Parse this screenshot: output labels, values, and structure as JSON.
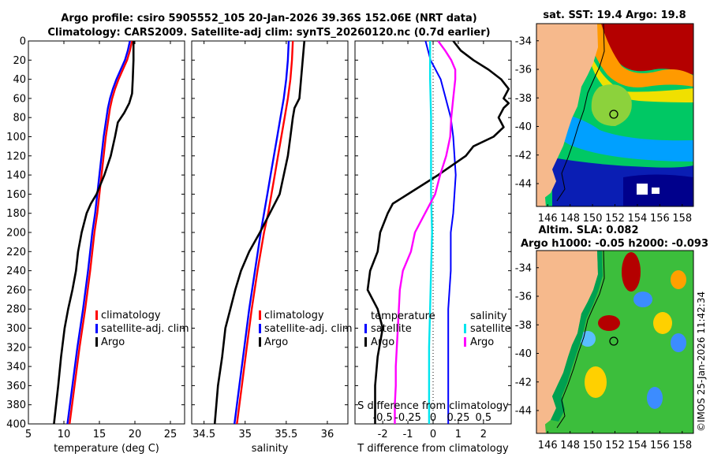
{
  "title": {
    "line1": "Argo profile: csiro 5905552_105 20-Jan-2026 39.36S 152.06E (NRT data)",
    "line2": "Climatology: CARS2009. Satellite-adj clim: synTS_20260120.nc (0.7d earlier)"
  },
  "colors": {
    "climatology": "#ff0000",
    "satellite": "#0000ff",
    "argo": "#000000",
    "sal_sat": "#00e5ee",
    "sal_argo": "#ff00ff"
  },
  "chart_data": [
    {
      "type": "line",
      "id": "temperature",
      "xlabel": "temperature (deg C)",
      "ylabel": "depth",
      "xlim": [
        5,
        27
      ],
      "ylim": [
        0,
        400
      ],
      "xticks": [
        "5",
        "10",
        "15",
        "20",
        "25"
      ],
      "yticks": [
        "0",
        "20",
        "40",
        "60",
        "80",
        "100",
        "120",
        "140",
        "160",
        "180",
        "200",
        "220",
        "240",
        "260",
        "280",
        "300",
        "320",
        "340",
        "360",
        "380",
        "400"
      ],
      "legend": [
        "climatology",
        "satellite-adj. clim",
        "Argo"
      ],
      "series": [
        {
          "name": "climatology",
          "depth": [
            0,
            10,
            20,
            30,
            40,
            50,
            60,
            70,
            80,
            100,
            120,
            140,
            160,
            180,
            200,
            240,
            280,
            320,
            360,
            400
          ],
          "values": [
            19.6,
            19.3,
            18.9,
            18.3,
            17.7,
            17.2,
            16.8,
            16.5,
            16.3,
            15.9,
            15.6,
            15.3,
            15.0,
            14.7,
            14.3,
            13.7,
            13.0,
            12.2,
            11.5,
            10.8
          ]
        },
        {
          "name": "satellite",
          "depth": [
            0,
            10,
            20,
            30,
            40,
            50,
            60,
            70,
            80,
            100,
            120,
            140,
            160,
            180,
            200,
            240,
            280,
            320,
            360,
            400
          ],
          "values": [
            19.3,
            19.0,
            18.6,
            18.0,
            17.4,
            16.9,
            16.5,
            16.2,
            16.0,
            15.6,
            15.3,
            15.0,
            14.7,
            14.4,
            14.0,
            13.4,
            12.7,
            11.9,
            11.2,
            10.5
          ]
        },
        {
          "name": "Argo",
          "depth": [
            0,
            20,
            40,
            55,
            65,
            75,
            85,
            100,
            120,
            140,
            160,
            170,
            180,
            200,
            220,
            240,
            260,
            280,
            300,
            330,
            360,
            400
          ],
          "values": [
            19.8,
            19.8,
            19.7,
            19.6,
            19.2,
            18.5,
            17.6,
            17.2,
            16.6,
            15.7,
            14.6,
            13.8,
            13.2,
            12.5,
            12.0,
            11.7,
            11.2,
            10.6,
            10.1,
            9.6,
            9.2,
            8.6
          ]
        }
      ]
    },
    {
      "type": "line",
      "id": "salinity",
      "xlabel": "salinity",
      "ylabel": "depth",
      "xlim": [
        34.35,
        36.25
      ],
      "ylim": [
        0,
        400
      ],
      "xticks": [
        "34.5",
        "35",
        "35.5",
        "36"
      ],
      "legend": [
        "climatology",
        "satellite-adj. clim",
        "Argo"
      ],
      "series": [
        {
          "name": "climatology",
          "depth": [
            0,
            20,
            40,
            60,
            80,
            100,
            120,
            140,
            160,
            180,
            200,
            240,
            280,
            320,
            360,
            400
          ],
          "values": [
            35.58,
            35.57,
            35.55,
            35.52,
            35.48,
            35.44,
            35.4,
            35.36,
            35.32,
            35.28,
            35.23,
            35.15,
            35.08,
            35.02,
            34.96,
            34.9
          ]
        },
        {
          "name": "satellite",
          "depth": [
            0,
            20,
            40,
            60,
            80,
            100,
            120,
            140,
            160,
            180,
            200,
            240,
            280,
            320,
            360,
            400
          ],
          "values": [
            35.53,
            35.52,
            35.5,
            35.47,
            35.43,
            35.39,
            35.35,
            35.31,
            35.27,
            35.23,
            35.19,
            35.12,
            35.05,
            34.99,
            34.93,
            34.87
          ]
        },
        {
          "name": "Argo",
          "depth": [
            0,
            40,
            60,
            70,
            80,
            100,
            120,
            140,
            160,
            180,
            200,
            220,
            240,
            260,
            280,
            300,
            330,
            360,
            400
          ],
          "values": [
            35.72,
            35.68,
            35.66,
            35.6,
            35.58,
            35.55,
            35.52,
            35.47,
            35.42,
            35.3,
            35.18,
            35.05,
            34.95,
            34.88,
            34.82,
            34.76,
            34.72,
            34.67,
            34.63
          ]
        }
      ]
    },
    {
      "type": "line",
      "id": "difference",
      "xlabel": "T difference from climatology",
      "x2label": "S difference from climatology",
      "xlim": [
        -3.1,
        3.1
      ],
      "ylim": [
        0,
        400
      ],
      "xticks": [
        "-2",
        "-1",
        "0",
        "1",
        "2"
      ],
      "x2ticks": [
        "-0.5",
        "-0.25",
        "0",
        "0.25",
        "0.5"
      ],
      "legend_left_title": "temperature",
      "legend_left": [
        "satellite",
        "Argo"
      ],
      "legend_right_title": "salinity",
      "legend_right": [
        "satellite",
        "Argo"
      ],
      "series": [
        {
          "name": "T satellite",
          "depth": [
            0,
            20,
            40,
            60,
            80,
            100,
            140,
            180,
            200,
            240,
            280,
            320,
            360,
            400
          ],
          "values": [
            -0.3,
            -0.1,
            0.3,
            0.5,
            0.7,
            0.8,
            0.9,
            0.8,
            0.7,
            0.7,
            0.6,
            0.6,
            0.6,
            0.6
          ]
        },
        {
          "name": "T Argo",
          "depth": [
            0,
            10,
            20,
            30,
            40,
            50,
            60,
            65,
            70,
            80,
            90,
            100,
            110,
            120,
            140,
            160,
            170,
            180,
            200,
            220,
            240,
            260,
            280,
            300,
            330,
            360,
            400
          ],
          "values": [
            0.8,
            1.1,
            1.6,
            2.2,
            2.7,
            3.0,
            2.8,
            3.0,
            2.8,
            2.6,
            2.8,
            2.4,
            1.6,
            1.3,
            0.2,
            -1.0,
            -1.6,
            -1.8,
            -2.1,
            -2.2,
            -2.5,
            -2.6,
            -2.2,
            -2.0,
            -2.2,
            -2.3,
            -2.3
          ]
        },
        {
          "name": "S satellite",
          "depth": [
            0,
            40,
            80,
            120,
            160,
            200,
            240,
            280,
            320,
            360,
            400
          ],
          "values": [
            -0.03,
            -0.03,
            -0.02,
            -0.02,
            -0.02,
            -0.01,
            -0.02,
            -0.03,
            -0.04,
            -0.04,
            -0.04
          ]
        },
        {
          "name": "S Argo",
          "depth": [
            0,
            10,
            20,
            30,
            40,
            50,
            60,
            80,
            100,
            120,
            140,
            160,
            180,
            200,
            220,
            240,
            260,
            280,
            300,
            320,
            340,
            360,
            380,
            400
          ],
          "values": [
            0.05,
            0.12,
            0.18,
            0.22,
            0.22,
            0.21,
            0.2,
            0.18,
            0.17,
            0.13,
            0.07,
            0.02,
            -0.08,
            -0.18,
            -0.22,
            -0.3,
            -0.33,
            -0.34,
            -0.35,
            -0.36,
            -0.37,
            -0.37,
            -0.38,
            -0.38
          ]
        }
      ]
    },
    {
      "type": "heatmap",
      "id": "sst-map",
      "title": "sat. SST: 19.4  Argo: 19.8",
      "xticks": [
        "146",
        "148",
        "150",
        "152",
        "154",
        "156",
        "158"
      ],
      "yticks": [
        "-34",
        "-36",
        "-38",
        "-40",
        "-42",
        "-44"
      ],
      "xlim": [
        145,
        159
      ],
      "ylim": [
        -45.6,
        -32.8
      ],
      "argo_position": [
        152.06,
        -39.36
      ]
    },
    {
      "type": "heatmap",
      "id": "sla-map",
      "title": "Altim. SLA: 0.082",
      "subtitle": "Argo h1000: -0.05  h2000: -0.093",
      "xticks": [
        "146",
        "148",
        "150",
        "152",
        "154",
        "156",
        "158"
      ],
      "yticks": [
        "-34",
        "-36",
        "-38",
        "-40",
        "-42",
        "-44"
      ],
      "xlim": [
        145,
        159
      ],
      "ylim": [
        -45.6,
        -32.8
      ],
      "argo_position": [
        152.06,
        -39.36
      ]
    }
  ],
  "credit": "©IMOS 25-Jan-2026 11:42:34"
}
